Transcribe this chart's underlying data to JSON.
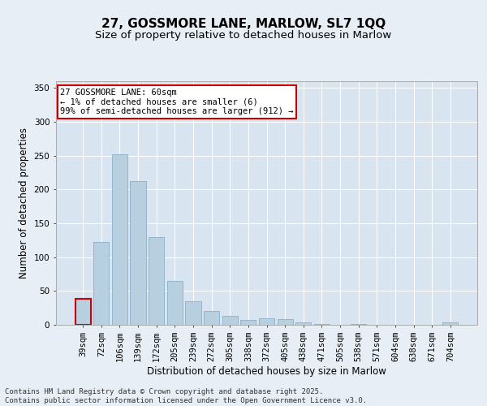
{
  "title1": "27, GOSSMORE LANE, MARLOW, SL7 1QQ",
  "title2": "Size of property relative to detached houses in Marlow",
  "xlabel": "Distribution of detached houses by size in Marlow",
  "ylabel": "Number of detached properties",
  "categories": [
    "39sqm",
    "72sqm",
    "106sqm",
    "139sqm",
    "172sqm",
    "205sqm",
    "239sqm",
    "272sqm",
    "305sqm",
    "338sqm",
    "372sqm",
    "405sqm",
    "438sqm",
    "471sqm",
    "505sqm",
    "538sqm",
    "571sqm",
    "604sqm",
    "638sqm",
    "671sqm",
    "704sqm"
  ],
  "values": [
    38,
    122,
    252,
    213,
    130,
    65,
    35,
    20,
    13,
    7,
    10,
    9,
    4,
    1,
    0,
    1,
    0,
    0,
    0,
    0,
    4
  ],
  "bar_color": "#b8cfe0",
  "bar_edge_color": "#8aafc8",
  "highlight_bar_index": 0,
  "highlight_edge_color": "#cc0000",
  "annotation_text": "27 GOSSMORE LANE: 60sqm\n← 1% of detached houses are smaller (6)\n99% of semi-detached houses are larger (912) →",
  "annotation_box_color": "#ffffff",
  "annotation_border_color": "#cc0000",
  "background_color": "#e8eef5",
  "plot_bg_color": "#d8e4ef",
  "grid_color": "#ffffff",
  "ylim": [
    0,
    360
  ],
  "yticks": [
    0,
    50,
    100,
    150,
    200,
    250,
    300,
    350
  ],
  "footer_text": "Contains HM Land Registry data © Crown copyright and database right 2025.\nContains public sector information licensed under the Open Government Licence v3.0.",
  "title_fontsize": 11,
  "subtitle_fontsize": 9.5,
  "axis_label_fontsize": 8.5,
  "tick_fontsize": 7.5,
  "annotation_fontsize": 7.5,
  "footer_fontsize": 6.5
}
